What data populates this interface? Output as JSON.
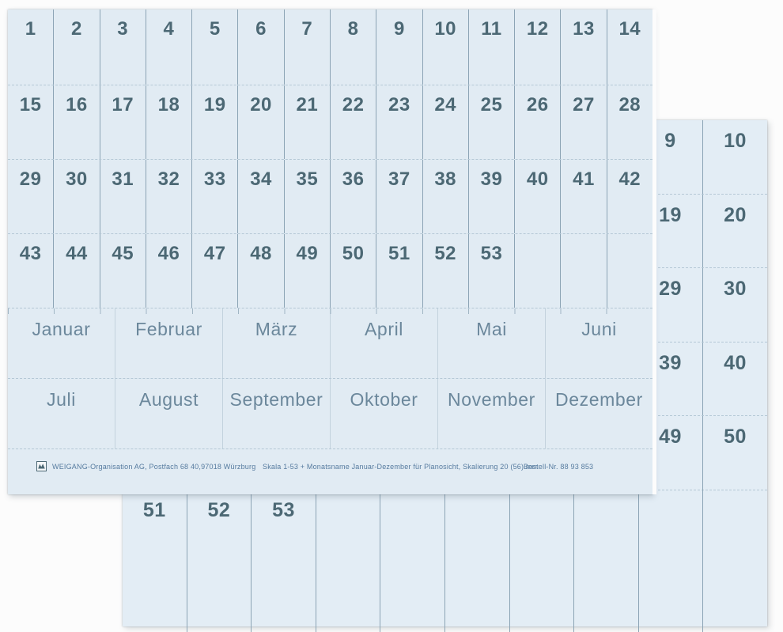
{
  "front_sheet": {
    "number_rows": [
      [
        "1",
        "2",
        "3",
        "4",
        "5",
        "6",
        "7",
        "8",
        "9",
        "10",
        "11",
        "12",
        "13",
        "14"
      ],
      [
        "15",
        "16",
        "17",
        "18",
        "19",
        "20",
        "21",
        "22",
        "23",
        "24",
        "25",
        "26",
        "27",
        "28"
      ],
      [
        "29",
        "30",
        "31",
        "32",
        "33",
        "34",
        "35",
        "36",
        "37",
        "38",
        "39",
        "40",
        "41",
        "42"
      ],
      [
        "43",
        "44",
        "45",
        "46",
        "47",
        "48",
        "49",
        "50",
        "51",
        "52",
        "53",
        "",
        "",
        ""
      ]
    ],
    "month_rows": [
      [
        "Januar",
        "Februar",
        "März",
        "April",
        "Mai",
        "Juni"
      ],
      [
        "Juli",
        "August",
        "September",
        "Oktober",
        "November",
        "Dezember"
      ]
    ],
    "footer": {
      "logo": "weigang-logo",
      "company": "WEIGANG-Organisation AG, Postfach 68 40,97018 Würzburg",
      "description": "Skala 1-53 + Monatsname Januar-Dezember für Planosicht, Skalierung 20 (56) mm",
      "order_no": "Bestell-Nr. 88 93 853"
    }
  },
  "back_sheet": {
    "right_column_rows": [
      [
        "9",
        "10"
      ],
      [
        "19",
        "20"
      ],
      [
        "29",
        "30"
      ],
      [
        "39",
        "40"
      ],
      [
        "49",
        "50"
      ]
    ],
    "bottom_rows": [
      [
        "51",
        "52",
        "53",
        "",
        "",
        "",
        "",
        "",
        "",
        ""
      ]
    ]
  },
  "colors": {
    "page_bg": "#fcfcfc",
    "sheet_bg": "#e1ebf3",
    "sheet_bg_back": "#e3edf5",
    "digit_color": "#4c6874",
    "month_color": "#6b879b",
    "footer_color": "#567b9f",
    "divider": "#8ca4b5",
    "dash": "#b5c8d6"
  }
}
